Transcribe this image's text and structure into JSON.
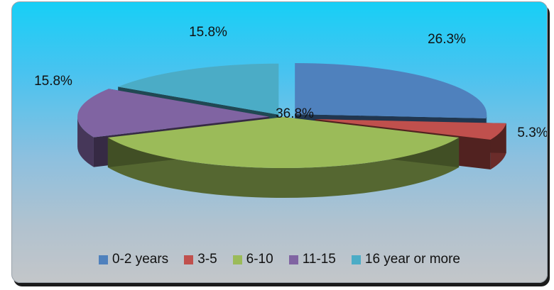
{
  "chart_data": {
    "type": "pie",
    "style": "3d-exploded",
    "categories": [
      "0-2 years",
      "3-5",
      "6-10",
      "11-15",
      "16 year or more"
    ],
    "values": [
      26.3,
      5.3,
      36.8,
      15.8,
      15.8
    ],
    "data_labels": [
      "26.3%",
      "5.3%",
      "36.8%",
      "15.8%",
      "15.8%"
    ],
    "colors": [
      "#4f81bd",
      "#c0504d",
      "#9bbb59",
      "#8064a2",
      "#4bacc6"
    ],
    "legend_position": "bottom",
    "title": "",
    "background": "sky-blue to grey gradient"
  }
}
